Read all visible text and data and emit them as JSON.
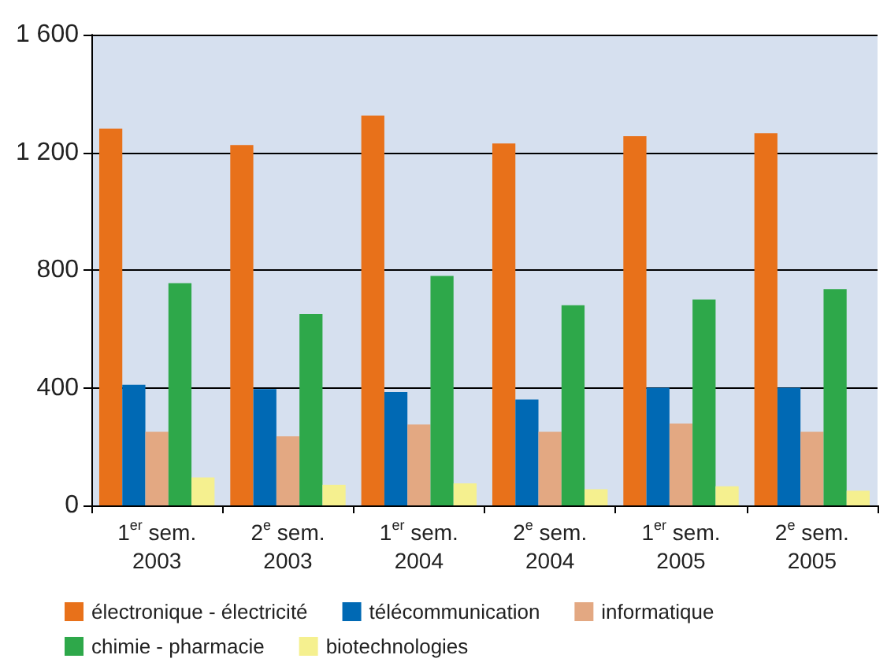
{
  "chart_data": {
    "type": "bar",
    "categories": [
      "1$^{er}$ sem.\n2003",
      "2$^{e}$ sem.\n2003",
      "1$^{er}$ sem.\n2004",
      "2$^{e}$ sem.\n2004",
      "1$^{er}$ sem.\n2005",
      "2$^{e}$ sem.\n2005"
    ],
    "series": [
      {
        "name": "électronique - électricité",
        "color": "#e8711a",
        "values": [
          1280,
          1225,
          1325,
          1230,
          1255,
          1265
        ]
      },
      {
        "name": "télécommunication",
        "color": "#0069b4",
        "values": [
          410,
          395,
          385,
          360,
          400,
          400
        ]
      },
      {
        "name": "informatique",
        "color": "#e3a882",
        "values": [
          250,
          235,
          275,
          250,
          278,
          250
        ]
      },
      {
        "name": "chimie - pharmacie",
        "color": "#2ea84a",
        "values": [
          755,
          650,
          780,
          680,
          700,
          735
        ]
      },
      {
        "name": "biotechnologies",
        "color": "#f5f08f",
        "values": [
          95,
          70,
          75,
          55,
          65,
          50
        ]
      }
    ],
    "ylim": [
      0,
      1600
    ],
    "yticks": [
      0,
      400,
      800,
      {
        "value": 1200,
        "label": "1 200"
      },
      {
        "value": 1600,
        "label": "1 600"
      }
    ],
    "grid": "y",
    "legend": "bottom"
  }
}
